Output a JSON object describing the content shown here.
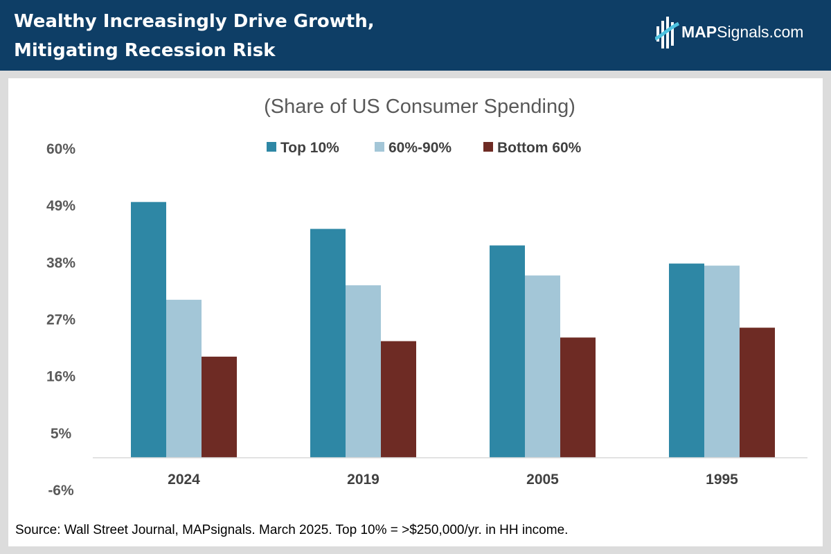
{
  "header": {
    "title_line1": "Wealthy Increasingly Drive Growth,",
    "title_line2": "Mitigating Recession Risk",
    "logo_bold": "MAP",
    "logo_rest": "Signals.com"
  },
  "colors": {
    "header_bg": "#0e3e66",
    "top10": "#2e87a5",
    "mid": "#a3c6d7",
    "bottom60": "#6e2b24"
  },
  "chart_data": {
    "type": "bar",
    "title": "(Share of US Consumer Spending)",
    "categories": [
      "2024",
      "2019",
      "2005",
      "1995"
    ],
    "series": [
      {
        "name": "Top 10%",
        "values": [
          49.6,
          44.4,
          41.2,
          37.7
        ]
      },
      {
        "name": "60%-90%",
        "values": [
          30.7,
          33.5,
          35.4,
          37.3
        ]
      },
      {
        "name": "Bottom 60%",
        "values": [
          19.7,
          22.7,
          23.4,
          25.3
        ]
      }
    ],
    "yticks": [
      "60%",
      "49%",
      "38%",
      "27%",
      "16%",
      "5%",
      "-6%"
    ],
    "ylim": [
      -6,
      60
    ],
    "grid": false,
    "legend": "top-center",
    "xlabel": "",
    "ylabel": ""
  },
  "footer": {
    "source": "Source: Wall Street Journal, MAPsignals. March 2025. Top 10% = >$250,000/yr. in HH income."
  }
}
